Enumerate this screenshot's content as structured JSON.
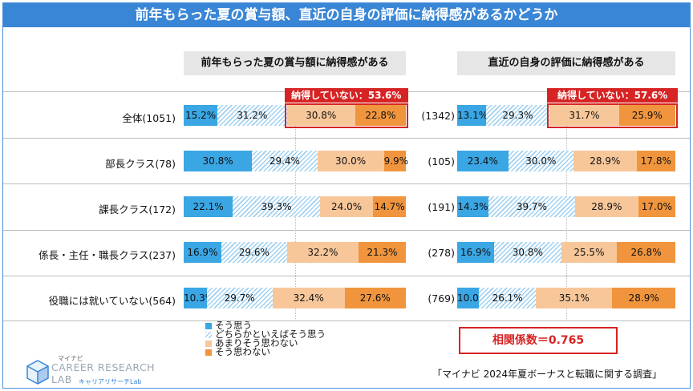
{
  "title": "前年もらった夏の賞与額、直近の自身の評価に納得感があるかどうか",
  "panels": [
    {
      "header": "前年もらった夏の賞与額に納得感がある",
      "not_satisfied_label": "納得していない：53.6%",
      "row_ns": [
        "1051",
        "78",
        "172",
        "237",
        "564"
      ],
      "data": [
        [
          15.2,
          31.2,
          30.8,
          22.8
        ],
        [
          30.8,
          29.4,
          30.0,
          9.9
        ],
        [
          22.1,
          39.3,
          24.0,
          14.7
        ],
        [
          16.9,
          29.6,
          32.2,
          21.3
        ],
        [
          10.3,
          29.7,
          32.4,
          27.6
        ]
      ],
      "labels": [
        [
          "15.2%",
          "31.2%",
          "30.8%",
          "22.8%"
        ],
        [
          "30.8%",
          "29.4%",
          "30.0%",
          "9.9%"
        ],
        [
          "22.1%",
          "39.3%",
          "24.0%",
          "14.7%"
        ],
        [
          "16.9%",
          "29.6%",
          "32.2%",
          "21.3%"
        ],
        [
          "10.3%",
          "29.7%",
          "32.4%",
          "27.6%"
        ]
      ]
    },
    {
      "header": "直近の自身の評価に納得感がある",
      "not_satisfied_label": "納得していない：57.6%",
      "row_ns": [
        "(1342)",
        "(105)",
        "(191)",
        "(278)",
        "(769)"
      ],
      "data": [
        [
          13.1,
          29.3,
          31.7,
          25.9
        ],
        [
          23.4,
          30.0,
          28.9,
          17.8
        ],
        [
          14.3,
          39.7,
          28.9,
          17.0
        ],
        [
          16.9,
          30.8,
          25.5,
          26.8
        ],
        [
          10.0,
          26.1,
          35.1,
          28.9
        ]
      ],
      "labels": [
        [
          "13.1%",
          "29.3%",
          "31.7%",
          "25.9%"
        ],
        [
          "23.4%",
          "30.0%",
          "28.9%",
          "17.8%"
        ],
        [
          "14.3%",
          "39.7%",
          "28.9%",
          "17.0%"
        ],
        [
          "16.9%",
          "30.8%",
          "25.5%",
          "26.8%"
        ],
        [
          "10.0%",
          "26.1%",
          "35.1%",
          "28.9%"
        ]
      ]
    }
  ],
  "row_labels": [
    "全体(1051)",
    "部長クラス(78)",
    "課長クラス(172)",
    "係長・主任・職長クラス(237)",
    "役職には就いていない(564)"
  ],
  "legend": [
    {
      "label": "そう思う",
      "color": "#3aa6e4"
    },
    {
      "label": "どちらかといえばそう思う",
      "color": "#cfe8f8"
    },
    {
      "label": "あまりそう思わない",
      "color": "#f7c79a"
    },
    {
      "label": "そう思わない",
      "color": "#f0953d"
    }
  ],
  "correlation": "相関係数＝0.765",
  "source": "「マイナビ 2024年夏ボーナスと転職に関する調査」",
  "logo": {
    "brand_small": "マイナビ",
    "name_line1": "CAREER RESEARCH",
    "name_line2": "LAB",
    "name_jp": "キャリアリサーチLab"
  },
  "chart_data": [
    {
      "type": "bar",
      "orientation": "horizontal",
      "stacked": "100%",
      "title": "前年もらった夏の賞与額に納得感がある",
      "categories": [
        "全体(1051)",
        "部長クラス(78)",
        "課長クラス(172)",
        "係長・主任・職長クラス(237)",
        "役職には就いていない(564)"
      ],
      "series": [
        {
          "name": "そう思う",
          "values": [
            15.2,
            30.8,
            22.1,
            16.9,
            10.3
          ]
        },
        {
          "name": "どちらかといえばそう思う",
          "values": [
            31.2,
            29.4,
            39.3,
            29.6,
            29.7
          ]
        },
        {
          "name": "あまりそう思わない",
          "values": [
            30.8,
            30.0,
            24.0,
            32.2,
            32.4
          ]
        },
        {
          "name": "そう思わない",
          "values": [
            22.8,
            9.9,
            14.7,
            21.3,
            27.6
          ]
        }
      ],
      "annotation": "納得していない：53.6%",
      "xlim": [
        0,
        100
      ],
      "legend": "bottom-left"
    },
    {
      "type": "bar",
      "orientation": "horizontal",
      "stacked": "100%",
      "title": "直近の自身の評価に納得感がある",
      "categories": [
        "(1342)",
        "(105)",
        "(191)",
        "(278)",
        "(769)"
      ],
      "series": [
        {
          "name": "そう思う",
          "values": [
            13.1,
            23.4,
            14.3,
            16.9,
            10.0
          ]
        },
        {
          "name": "どちらかといえばそう思う",
          "values": [
            29.3,
            30.0,
            39.7,
            30.8,
            26.1
          ]
        },
        {
          "name": "あまりそう思わない",
          "values": [
            31.7,
            28.9,
            28.9,
            25.5,
            35.1
          ]
        },
        {
          "name": "そう思わない",
          "values": [
            25.9,
            17.8,
            17.0,
            26.8,
            28.9
          ]
        }
      ],
      "annotation": "納得していない：57.6%",
      "xlim": [
        0,
        100
      ],
      "legend": "bottom-left"
    }
  ]
}
